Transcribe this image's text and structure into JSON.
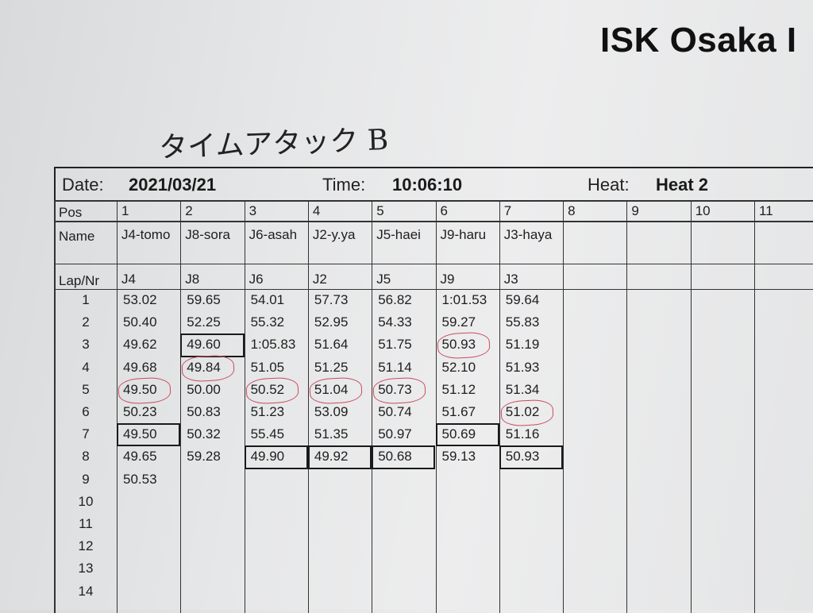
{
  "header": {
    "title": "ISK Osaka I"
  },
  "handwritten_note": "タイムアタック B",
  "info": {
    "date_label": "Date:",
    "date_value": "2021/03/21",
    "time_label": "Time:",
    "time_value": "10:06:10",
    "heat_label": "Heat:",
    "heat_value": "Heat 2"
  },
  "table": {
    "pos_label": "Pos",
    "name_label": "Name",
    "lapnr_label": "Lap/Nr",
    "positions": [
      "1",
      "2",
      "3",
      "4",
      "5",
      "6",
      "7",
      "8",
      "9",
      "10",
      "11"
    ],
    "names": [
      "J4-tomo",
      "J8-sora",
      "J6-asah",
      "J2-y.ya",
      "J5-haei",
      "J9-haru",
      "J3-haya",
      "",
      "",
      "",
      ""
    ],
    "numbers": [
      "J4",
      "J8",
      "J6",
      "J2",
      "J5",
      "J9",
      "J3",
      "",
      "",
      "",
      ""
    ],
    "laps": [
      "1",
      "2",
      "3",
      "4",
      "5",
      "6",
      "7",
      "8",
      "9",
      "10",
      "11",
      "12",
      "13",
      "14"
    ],
    "times": [
      [
        "53.02",
        "50.40",
        "49.62",
        "49.68",
        "49.50",
        "50.23",
        "49.50",
        "49.65",
        "50.53"
      ],
      [
        "59.65",
        "52.25",
        "49.60",
        "49.84",
        "50.00",
        "50.83",
        "50.32",
        "59.28"
      ],
      [
        "54.01",
        "55.32",
        "1:05.83",
        "51.05",
        "50.52",
        "51.23",
        "55.45",
        "49.90"
      ],
      [
        "57.73",
        "52.95",
        "51.64",
        "51.25",
        "51.04",
        "53.09",
        "51.35",
        "49.92"
      ],
      [
        "56.82",
        "54.33",
        "51.75",
        "51.14",
        "50.73",
        "50.74",
        "50.97",
        "50.68"
      ],
      [
        "1:01.53",
        "59.27",
        "50.93",
        "52.10",
        "51.12",
        "51.67",
        "50.69",
        "59.13"
      ],
      [
        "59.64",
        "55.83",
        "51.19",
        "51.93",
        "51.34",
        "51.02",
        "51.16",
        "50.93"
      ]
    ],
    "best_boxes": [
      [
        0,
        6
      ],
      [
        1,
        2
      ],
      [
        2,
        7
      ],
      [
        3,
        7
      ],
      [
        4,
        7
      ],
      [
        5,
        6
      ],
      [
        6,
        7
      ]
    ],
    "red_circles": [
      [
        0,
        4
      ],
      [
        1,
        3
      ],
      [
        2,
        4
      ],
      [
        3,
        4
      ],
      [
        4,
        4
      ],
      [
        5,
        2
      ],
      [
        6,
        5
      ]
    ]
  }
}
